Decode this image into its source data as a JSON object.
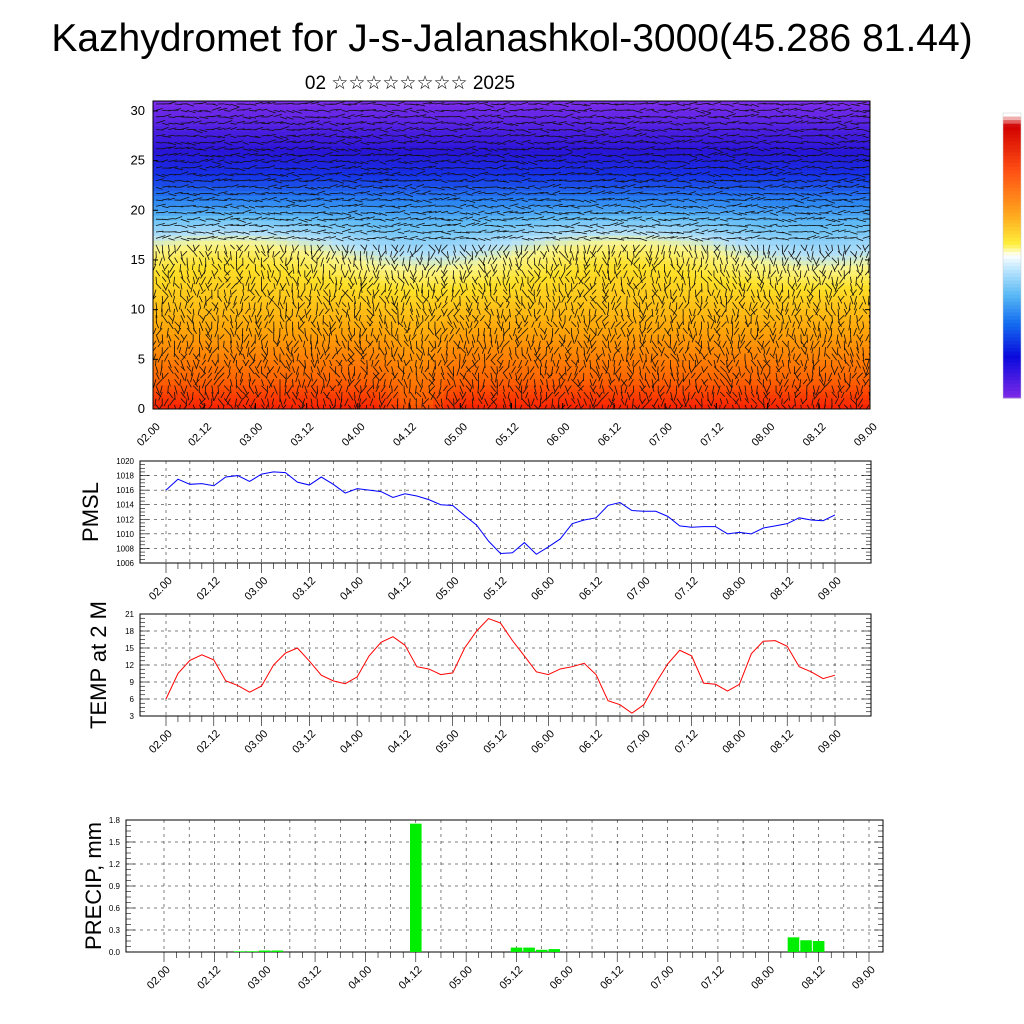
{
  "header": {
    "title": "Kazhydromet for J-s-Jalanashkol-3000(45.286 81.44)",
    "subtitle": "02 ☆☆☆☆☆☆☆☆ 2025"
  },
  "colors": {
    "pmsl_line": "#0000ff",
    "temp_line": "#ff0000",
    "precip_bar": "#00ee00",
    "colorbar": [
      "#ffffff",
      "#d40000",
      "#ff4400",
      "#ff8800",
      "#ffbb00",
      "#ffee00",
      "#ffff88",
      "#cceeff",
      "#88ccff",
      "#2299ff",
      "#0044ff",
      "#0000cc",
      "#6622dd"
    ]
  },
  "chart_data": [
    {
      "id": "profile",
      "type": "heatmap",
      "ylabel": "",
      "ylim": [
        0,
        31
      ],
      "yticks": [
        "0",
        "5",
        "10",
        "15",
        "20",
        "25",
        "30"
      ],
      "x_labels": [
        "02.00",
        "02.12",
        "03.00",
        "03.12",
        "04.00",
        "04.12",
        "05.00",
        "05.12",
        "06.00",
        "06.12",
        "07.00",
        "07.12",
        "08.00",
        "08.12",
        "09.00"
      ],
      "grid": false,
      "overlay": "wind barbs"
    },
    {
      "id": "pmsl",
      "type": "line",
      "ylabel": "PMSL",
      "ylim": [
        1006,
        1020
      ],
      "yticks": [
        "1006",
        "1008",
        "1010",
        "1012",
        "1014",
        "1016",
        "1018",
        "1020"
      ],
      "x_labels": [
        "02.00",
        "02.12",
        "03.00",
        "03.12",
        "04.00",
        "04.12",
        "05.00",
        "05.12",
        "06.00",
        "06.12",
        "07.00",
        "07.12",
        "08.00",
        "08.12",
        "09.00"
      ],
      "grid": true,
      "values": [
        1016.0,
        1017.5,
        1016.8,
        1016.9,
        1016.6,
        1017.8,
        1018.0,
        1017.2,
        1018.2,
        1018.5,
        1018.4,
        1017.1,
        1016.7,
        1017.8,
        1016.8,
        1015.6,
        1016.2,
        1016.0,
        1015.8,
        1015.0,
        1015.5,
        1015.2,
        1014.7,
        1014.0,
        1013.9,
        1012.5,
        1011.2,
        1009.0,
        1007.3,
        1007.4,
        1008.8,
        1007.2,
        1008.2,
        1009.3,
        1011.4,
        1011.9,
        1012.2,
        1013.9,
        1014.3,
        1013.2,
        1013.1,
        1013.1,
        1012.4,
        1011.1,
        1010.9,
        1011.0,
        1011.0,
        1010.0,
        1010.2,
        1010.0,
        1010.8,
        1011.1,
        1011.4,
        1012.2,
        1011.9,
        1011.8,
        1012.6
      ]
    },
    {
      "id": "temp",
      "type": "line",
      "ylabel": "TEMP at 2 M",
      "ylim": [
        3,
        21
      ],
      "yticks": [
        "3",
        "6",
        "9",
        "12",
        "15",
        "18",
        "21"
      ],
      "x_labels": [
        "02.00",
        "02.12",
        "03.00",
        "03.12",
        "04.00",
        "04.12",
        "05.00",
        "05.12",
        "06.00",
        "06.12",
        "07.00",
        "07.12",
        "08.00",
        "08.12",
        "09.00"
      ],
      "grid": true,
      "values": [
        6.0,
        10.5,
        12.8,
        13.8,
        12.9,
        9.2,
        8.4,
        7.2,
        8.3,
        12.0,
        14.1,
        15.0,
        12.7,
        10.2,
        9.2,
        8.7,
        9.9,
        13.6,
        16.0,
        17.0,
        15.5,
        11.7,
        11.3,
        10.3,
        10.6,
        15.0,
        18.0,
        20.2,
        19.4,
        16.3,
        13.6,
        10.8,
        10.3,
        11.3,
        11.7,
        12.3,
        10.3,
        5.7,
        5.0,
        3.5,
        5.0,
        8.8,
        12.2,
        14.6,
        13.6,
        8.8,
        8.6,
        7.4,
        8.6,
        14.0,
        16.2,
        16.3,
        15.3,
        11.7,
        10.8,
        9.6,
        10.2
      ]
    },
    {
      "id": "precip",
      "type": "bar",
      "ylabel": "PRECIP, mm",
      "ylim": [
        0,
        1.8
      ],
      "yticks": [
        "0.0",
        "0.3",
        "0.6",
        "0.9",
        "1.2",
        "1.5",
        "1.8"
      ],
      "x_labels": [
        "02.00",
        "02.12",
        "03.00",
        "03.12",
        "04.00",
        "04.12",
        "05.00",
        "05.12",
        "06.00",
        "06.12",
        "07.00",
        "07.12",
        "08.00",
        "08.12",
        "09.00"
      ],
      "grid": true,
      "values": [
        0,
        0,
        0,
        0,
        0,
        0,
        0.01,
        0.01,
        0.02,
        0.02,
        0,
        0,
        0,
        0,
        0,
        0,
        0,
        0,
        0,
        0,
        1.75,
        0,
        0,
        0,
        0,
        0,
        0,
        0,
        0.06,
        0.06,
        0.03,
        0.04,
        0,
        0,
        0,
        0,
        0,
        0,
        0,
        0,
        0,
        0,
        0,
        0,
        0,
        0,
        0,
        0,
        0,
        0,
        0.2,
        0.16,
        0.15,
        0,
        0,
        0,
        0
      ]
    }
  ]
}
